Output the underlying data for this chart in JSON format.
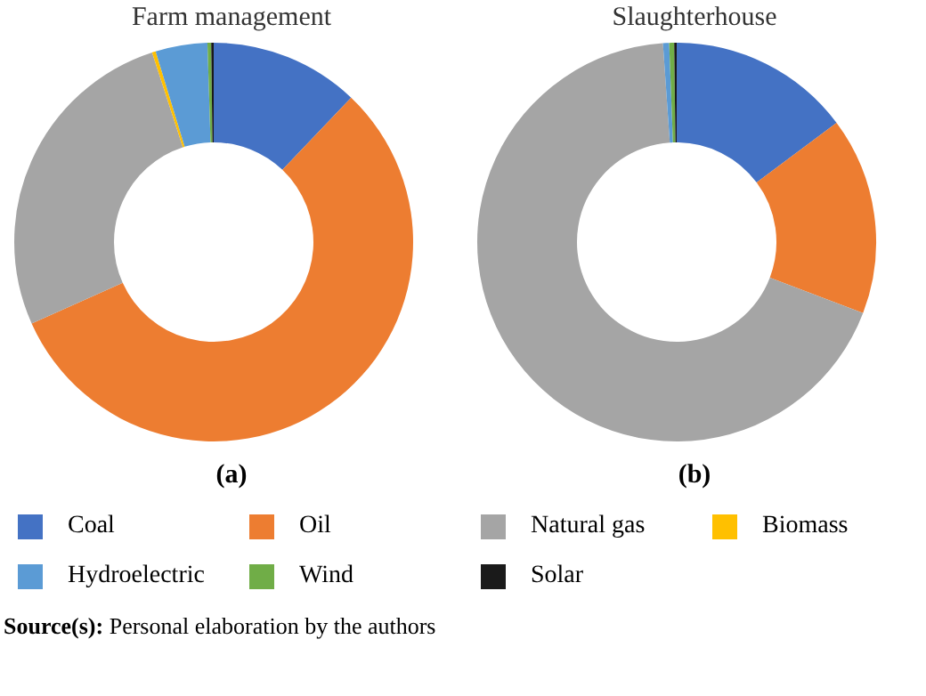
{
  "chart_data": [
    {
      "type": "donut",
      "title": "Farm management",
      "xlabel": "(a)",
      "categories": [
        "Coal",
        "Oil",
        "Natural gas",
        "Biomass",
        "Hydroelectric",
        "Wind",
        "Solar"
      ],
      "values": [
        12.1,
        56.2,
        26.7,
        0.3,
        4.2,
        0.3,
        0.2
      ],
      "colors": [
        "#4472c4",
        "#ed7d31",
        "#a5a5a5",
        "#ffc000",
        "#5b9bd5",
        "#70ad47",
        "#1a1a1a"
      ],
      "legend": "bottom",
      "annotations": [
        "Source(s): Personal elaboration by the authors"
      ]
    },
    {
      "type": "donut",
      "title": "Slaughterhouse",
      "xlabel": "(b)",
      "categories": [
        null,
        null,
        null,
        null,
        null,
        null,
        null
      ],
      "values": [
        14.8,
        16.0,
        68.1,
        0,
        0.5,
        0.4,
        0.2
      ],
      "colors": [
        "#4472c4",
        "#ed7d31",
        "#a5a5a5",
        "#ffc000",
        "#5b9bd5",
        "#70ad47",
        "#1a1a1a"
      ]
    }
  ]
}
